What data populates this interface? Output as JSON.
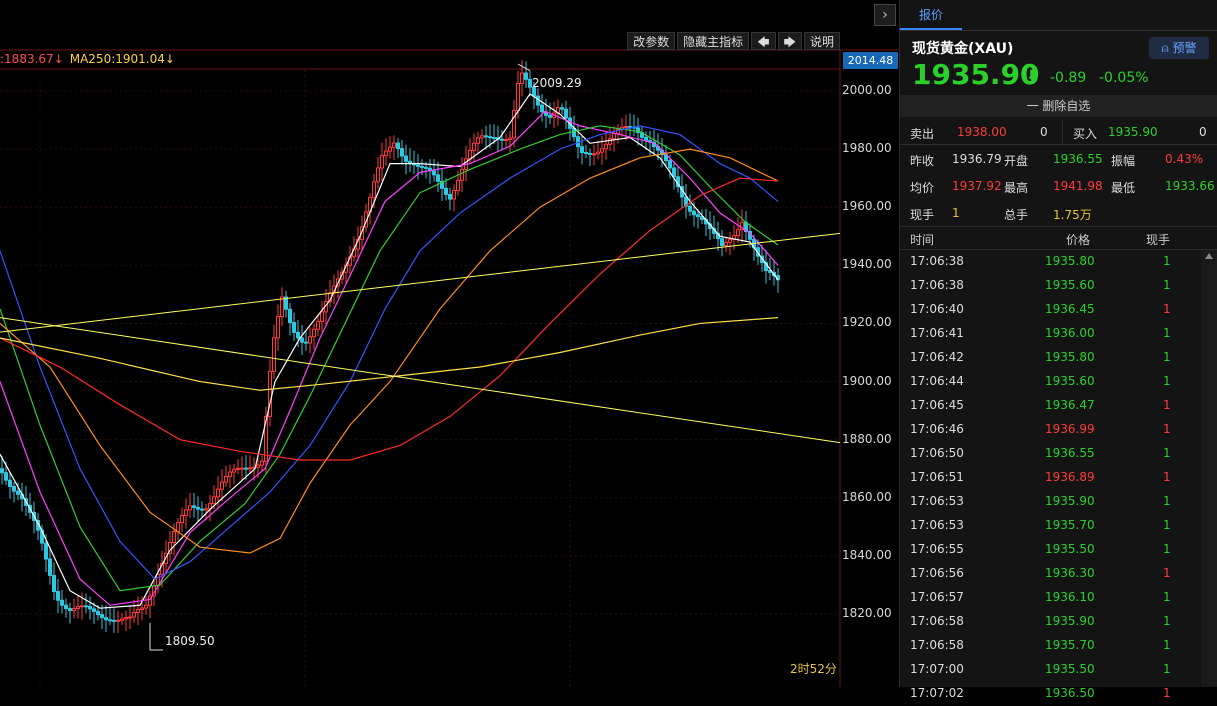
{
  "chart": {
    "ma_legend": [
      ":1883.67↓",
      "MA250:1901.04↓"
    ],
    "current_price_tag": "2014.48",
    "y_axis": [
      "2000.00",
      "1980.00",
      "1960.00",
      "1940.00",
      "1920.00",
      "1900.00",
      "1880.00",
      "1860.00",
      "1840.00",
      "1820.00"
    ],
    "peak_label": "2009.29",
    "low_label": "1809.50",
    "countdown": "2时52分",
    "toolbar": {
      "params": "改参数",
      "hide_indicator": "隐藏主指标",
      "prev": "🡄",
      "next": "🡆",
      "help": "说明"
    },
    "collapse_arrow": "›",
    "colors": {
      "up": "#ff3b3b",
      "down": "#2ec8e0",
      "ma5": "#ffffff",
      "ma10": "#ff40ff",
      "ma20": "#33cc33",
      "ma30": "#3355ff",
      "ma60": "#ff8c1a",
      "ma120": "#ff2a2a",
      "ma250": "#ffe14a",
      "trend": "#ffff66"
    }
  },
  "chart_data": {
    "type": "line",
    "title": "",
    "ylim": [
      1809.5,
      2014.48
    ],
    "series": [
      {
        "name": "MA250",
        "values": [
          1901.04
        ]
      }
    ]
  },
  "panel": {
    "tab": "报价",
    "name": "现货黄金(XAU)",
    "alert_label": "预警",
    "price": "1935.90",
    "change": "-0.89",
    "change_pct": "-0.05%",
    "remove_watch": "一 删除自选",
    "order_book": {
      "sell_label": "卖出",
      "sell_price": "1938.00",
      "sell_vol": "0",
      "buy_label": "买入",
      "buy_price": "1935.90",
      "buy_vol": "0"
    },
    "stats": [
      {
        "l1": "昨收",
        "v1": "1936.79",
        "c1": "w",
        "l2": "开盘",
        "v2": "1936.55",
        "c2": "g",
        "l3": "振幅",
        "v3": "0.43%",
        "c3": "r"
      },
      {
        "l1": "均价",
        "v1": "1937.92",
        "c1": "r",
        "l2": "最高",
        "v2": "1941.98",
        "c2": "r",
        "l3": "最低",
        "v3": "1933.66",
        "c3": "g"
      },
      {
        "l1": "现手",
        "v1": "1",
        "c1": "y",
        "l2": "总手",
        "v2": "1.75万",
        "c2": "y",
        "l3": "",
        "v3": "",
        "c3": "w"
      }
    ],
    "trades_header": {
      "time": "时间",
      "price": "价格",
      "vol": "现手"
    },
    "trades": [
      {
        "time": "17:06:38",
        "price": "1935.80",
        "pc": "g",
        "vol": "1",
        "vc": "g"
      },
      {
        "time": "17:06:38",
        "price": "1935.60",
        "pc": "g",
        "vol": "1",
        "vc": "g"
      },
      {
        "time": "17:06:40",
        "price": "1936.45",
        "pc": "g",
        "vol": "1",
        "vc": "r"
      },
      {
        "time": "17:06:41",
        "price": "1936.00",
        "pc": "g",
        "vol": "1",
        "vc": "g"
      },
      {
        "time": "17:06:42",
        "price": "1935.80",
        "pc": "g",
        "vol": "1",
        "vc": "g"
      },
      {
        "time": "17:06:44",
        "price": "1935.60",
        "pc": "g",
        "vol": "1",
        "vc": "g"
      },
      {
        "time": "17:06:45",
        "price": "1936.47",
        "pc": "g",
        "vol": "1",
        "vc": "r"
      },
      {
        "time": "17:06:46",
        "price": "1936.99",
        "pc": "r",
        "vol": "1",
        "vc": "r"
      },
      {
        "time": "17:06:50",
        "price": "1936.55",
        "pc": "g",
        "vol": "1",
        "vc": "g"
      },
      {
        "time": "17:06:51",
        "price": "1936.89",
        "pc": "r",
        "vol": "1",
        "vc": "r"
      },
      {
        "time": "17:06:53",
        "price": "1935.90",
        "pc": "g",
        "vol": "1",
        "vc": "g"
      },
      {
        "time": "17:06:53",
        "price": "1935.70",
        "pc": "g",
        "vol": "1",
        "vc": "g"
      },
      {
        "time": "17:06:55",
        "price": "1935.50",
        "pc": "g",
        "vol": "1",
        "vc": "g"
      },
      {
        "time": "17:06:56",
        "price": "1936.30",
        "pc": "g",
        "vol": "1",
        "vc": "r"
      },
      {
        "time": "17:06:57",
        "price": "1936.10",
        "pc": "g",
        "vol": "1",
        "vc": "g"
      },
      {
        "time": "17:06:58",
        "price": "1935.90",
        "pc": "g",
        "vol": "1",
        "vc": "g"
      },
      {
        "time": "17:06:58",
        "price": "1935.70",
        "pc": "g",
        "vol": "1",
        "vc": "g"
      },
      {
        "time": "17:07:00",
        "price": "1935.50",
        "pc": "g",
        "vol": "1",
        "vc": "g"
      },
      {
        "time": "17:07:02",
        "price": "1936.50",
        "pc": "g",
        "vol": "1",
        "vc": "r"
      }
    ]
  }
}
